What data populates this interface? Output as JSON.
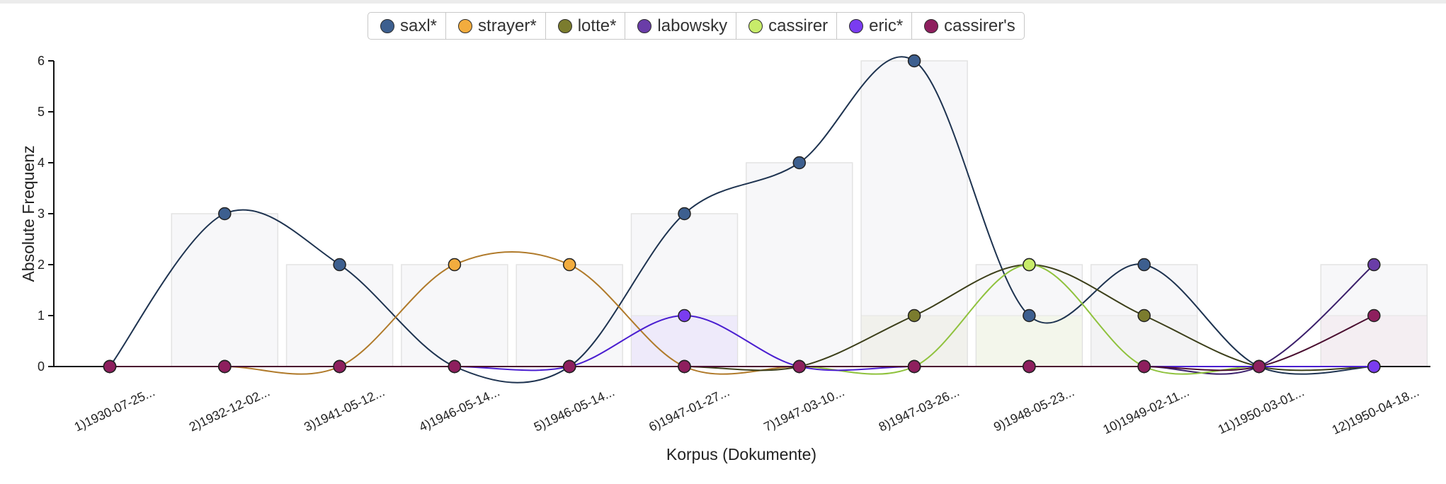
{
  "chart_data": {
    "type": "line",
    "xlabel": "Korpus (Dokumente)",
    "ylabel": "Absolute Frequenz",
    "ylim": [
      0,
      6
    ],
    "yticks": [
      0,
      1,
      2,
      3,
      4,
      5,
      6
    ],
    "categories": [
      "1)1930-07-25...",
      "2)1932-12-02...",
      "3)1941-05-12...",
      "4)1946-05-14...",
      "5)1946-05-14...",
      "6)1947-01-27...",
      "7)1947-03-10...",
      "8)1947-03-26...",
      "9)1948-05-23...",
      "10)1949-02-11...",
      "11)1950-03-01...",
      "12)1950-04-18..."
    ],
    "legend_position": "top-center",
    "bars": {
      "description": "per-document max frequency shown as faint background bars",
      "values": [
        0,
        3,
        2,
        2,
        2,
        3,
        4,
        6,
        2,
        2,
        0,
        2
      ]
    },
    "series": [
      {
        "name": "saxl*",
        "color": "#3d5f8f",
        "stroke": "#1e3350",
        "values": [
          0,
          3,
          2,
          0,
          0,
          3,
          4,
          6,
          1,
          2,
          0,
          0
        ]
      },
      {
        "name": "strayer*",
        "color": "#f2ac3e",
        "stroke": "#b07a2a",
        "values": [
          0,
          0,
          0,
          2,
          2,
          0,
          0,
          0,
          0,
          0,
          0,
          0
        ]
      },
      {
        "name": "lotte*",
        "color": "#7b7c2e",
        "stroke": "#3c3f1a",
        "values": [
          0,
          0,
          0,
          0,
          0,
          0,
          0,
          1,
          2,
          1,
          0,
          0
        ]
      },
      {
        "name": "labowsky",
        "color": "#6a3da8",
        "stroke": "#3b1f6b",
        "values": [
          0,
          0,
          0,
          0,
          0,
          0,
          0,
          0,
          0,
          0,
          0,
          2
        ]
      },
      {
        "name": "cassirer",
        "color": "#c8ec6a",
        "stroke": "#8fc23d",
        "values": [
          0,
          0,
          0,
          0,
          0,
          0,
          0,
          0,
          2,
          0,
          0,
          0
        ]
      },
      {
        "name": "eric*",
        "color": "#7a3cf0",
        "stroke": "#4a1ed0",
        "values": [
          0,
          0,
          0,
          0,
          0,
          1,
          0,
          0,
          0,
          0,
          0,
          0
        ]
      },
      {
        "name": "cassirer's",
        "color": "#8e1f5e",
        "stroke": "#4a0f30",
        "values": [
          0,
          0,
          0,
          0,
          0,
          0,
          0,
          0,
          0,
          0,
          0,
          1
        ]
      }
    ]
  }
}
